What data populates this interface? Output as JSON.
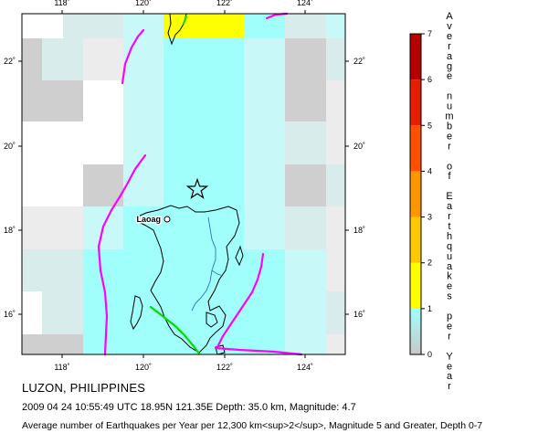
{
  "map": {
    "lon_ticks": [
      "118˚",
      "120˚",
      "122˚",
      "124˚"
    ],
    "lat_ticks": [
      "16˚",
      "18˚",
      "20˚",
      "22˚"
    ],
    "city_label": "Laoag",
    "marker_icon": "star-icon"
  },
  "legend": {
    "tick_labels": [
      "0",
      "1",
      "2",
      "3",
      "4",
      "5",
      "6",
      "7"
    ],
    "vertical_title": "Average number of Earthquakes per Year",
    "colors": [
      "#c8c8c8",
      "#a0fffa",
      "#ffff00",
      "#ffc800",
      "#ff9600",
      "#ff5000",
      "#e61e00",
      "#b40000"
    ]
  },
  "captions": {
    "region": "LUZON, PHILIPPINES",
    "event": "2009 04 24 10:55:49 UTC 18.95N 121.35E Depth: 35.0 km, Magnitude: 4.7",
    "description": "Average number of Earthquakes per Year per 12,300 km<sup>2</sup>, Magnitude 5 and Greater, Depth 0-7"
  },
  "colors": {
    "grey_cell": "#cfcfcf",
    "light_cell": "#c8f8f8",
    "cyan_cell": "#a0fffa",
    "yellow_cell": "#ffff00",
    "trench": "#ff00ff",
    "fault": "#00dd00",
    "river": "#2a6fd6"
  }
}
